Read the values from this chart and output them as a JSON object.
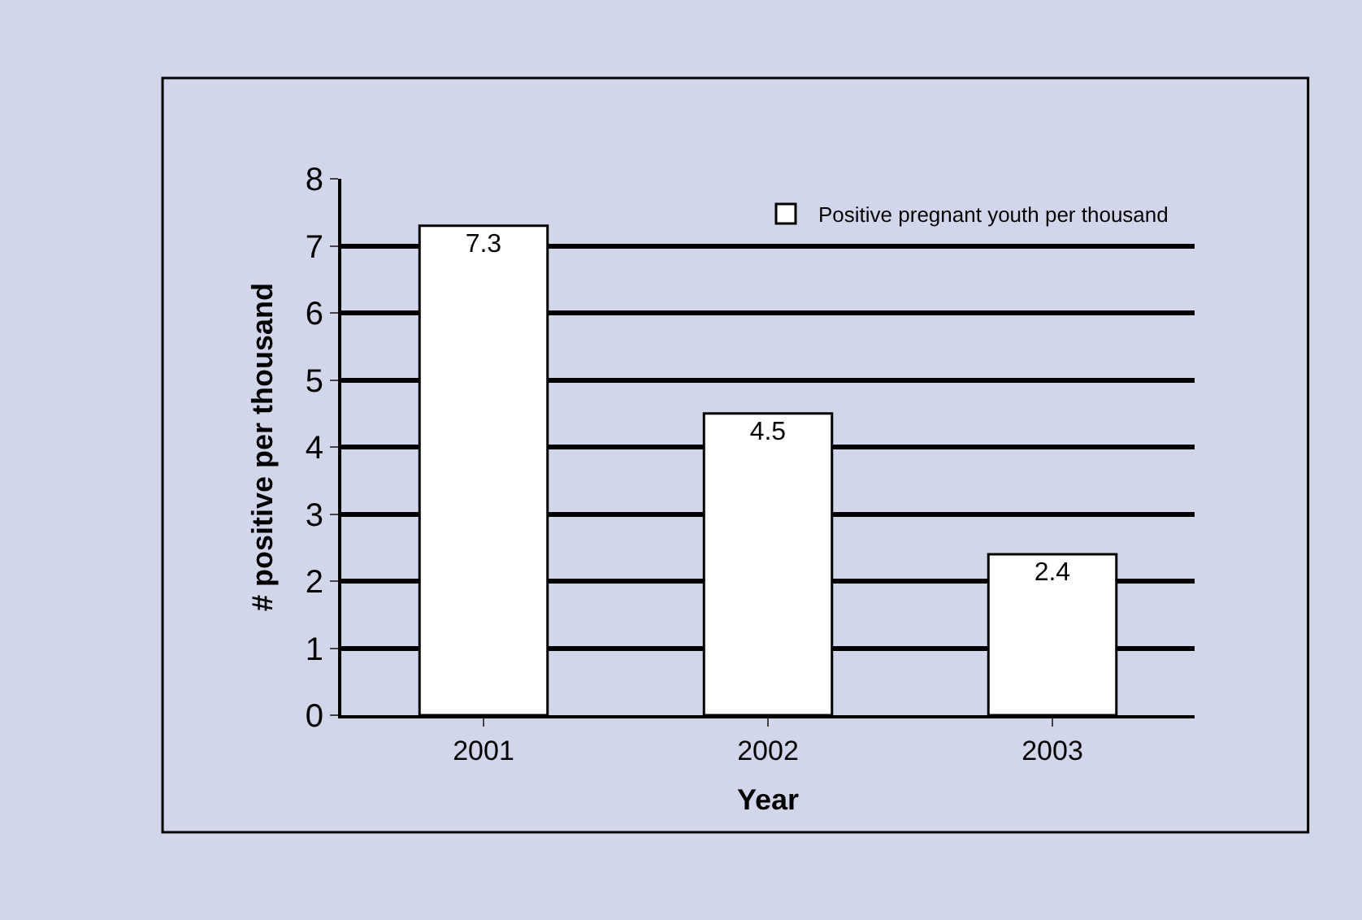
{
  "chart_data": {
    "type": "bar",
    "categories": [
      "2001",
      "2002",
      "2003"
    ],
    "series": [
      {
        "name": "Positive pregnant youth per thousand",
        "color": "#ffffff",
        "values": [
          7.3,
          4.5,
          2.4
        ]
      }
    ],
    "xlabel": "Year",
    "ylabel": "# positive per thousand",
    "ylim": [
      0,
      8
    ],
    "yticks": [
      0,
      1,
      2,
      3,
      4,
      5,
      6,
      7,
      8
    ],
    "grid": "y",
    "legend": "top right",
    "data_labels": true
  }
}
